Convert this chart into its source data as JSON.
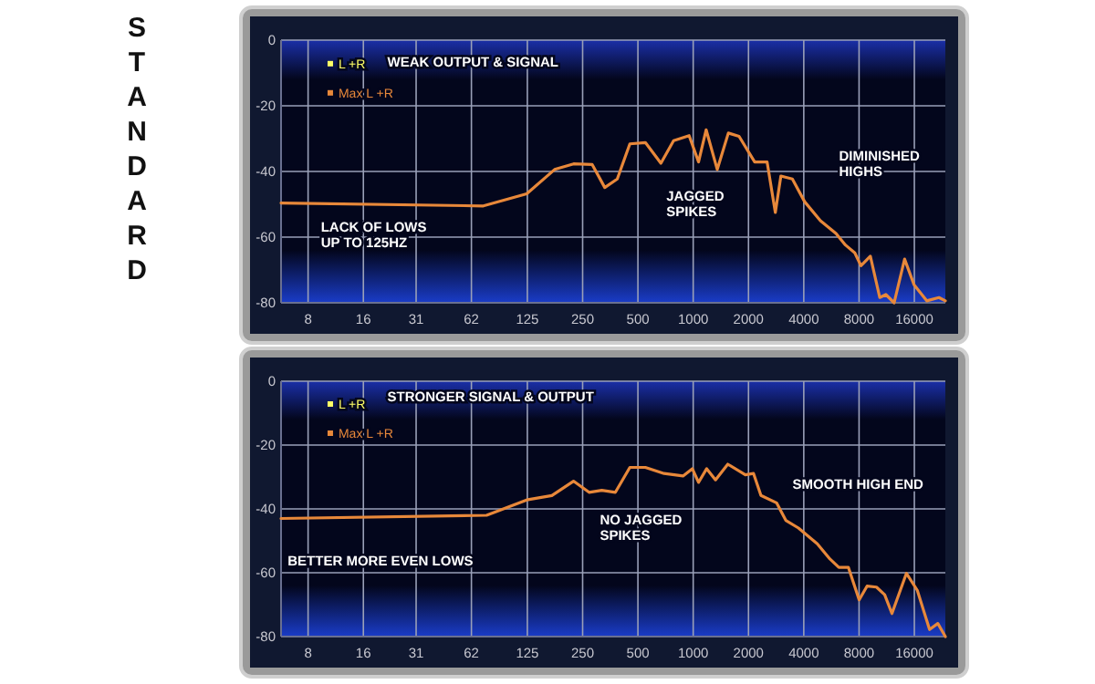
{
  "chart_data": [
    {
      "type": "line",
      "title": "STANDARD",
      "log": "x",
      "grid": true,
      "legend": "top left",
      "xlim": [
        5.7,
        23600
      ],
      "xticks": [
        8,
        16,
        31,
        62,
        125,
        250,
        500,
        1000,
        2000,
        4000,
        8000,
        16000
      ],
      "ylim": [
        -80,
        0
      ],
      "yticks": [
        0,
        -20,
        -40,
        -60,
        -80
      ],
      "annotations": [
        "WEAK OUTPUT & SIGNAL",
        "LACK OF LOWS\nUP TO 125HZ",
        "JAGGED\nSPIKES",
        "DIMINISHED\nHIGHS"
      ],
      "series": [
        {
          "name": "L +R",
          "color": "#ffff66"
        },
        {
          "name": "Max L +R",
          "color": "#e8883a",
          "x": [
            5.7,
            72,
            124,
            176,
            223,
            282,
            330,
            386,
            452,
            549,
            667,
            782,
            950,
            1069,
            1176,
            1352,
            1554,
            1777,
            2162,
            2525,
            2800,
            3002,
            3467,
            4041,
            4927,
            5992,
            6744,
            7582,
            8192,
            9216,
            10368,
            11195,
            12418,
            14160,
            15938,
            18688,
            21780,
            23600
          ],
          "values": [
            -49.6,
            -50.5,
            -46.8,
            -39.4,
            -37.7,
            -37.9,
            -44.9,
            -42.3,
            -31.6,
            -31.2,
            -37.5,
            -30.6,
            -29.1,
            -37.1,
            -27.3,
            -39.4,
            -28.3,
            -29.3,
            -37.1,
            -37.1,
            -52.5,
            -41.4,
            -42.3,
            -49.2,
            -55,
            -58.9,
            -62.4,
            -64.8,
            -68.7,
            -65.8,
            -78.4,
            -77.5,
            -80,
            -66.7,
            -74.5,
            -79.4,
            -78.4,
            -79.4
          ]
        }
      ]
    },
    {
      "type": "line",
      "log": "x",
      "grid": true,
      "legend": "top left",
      "xlim": [
        5.7,
        23600
      ],
      "xticks": [
        8,
        16,
        31,
        62,
        125,
        250,
        500,
        1000,
        2000,
        4000,
        8000,
        16000
      ],
      "ylim": [
        -80,
        0
      ],
      "yticks": [
        0,
        -20,
        -40,
        -60,
        -80
      ],
      "annotations": [
        "STRONGER SIGNAL & OUTPUT",
        "BETTER MORE EVEN LOWS",
        "NO JAGGED\nSPIKES",
        "SMOOTH HIGH END"
      ],
      "series": [
        {
          "name": "L +R",
          "color": "#ffff66"
        },
        {
          "name": "Max L +R",
          "color": "#e8883a",
          "x": [
            5.7,
            75,
            124,
            170,
            223,
            271,
            318,
            377,
            452,
            549,
            694,
            880,
            989,
            1069,
            1184,
            1323,
            1543,
            1923,
            2131,
            2338,
            2843,
            3193,
            3743,
            4737,
            5552,
            6210,
            6994,
            8010,
            8841,
            9952,
            11030,
            12080,
            14480,
            16600,
            19360,
            21480,
            23600
          ],
          "values": [
            -43,
            -42,
            -37.2,
            -35.8,
            -31.3,
            -34.8,
            -34.2,
            -34.8,
            -27,
            -27,
            -28.9,
            -29.7,
            -27.4,
            -31.7,
            -27.4,
            -30.9,
            -26,
            -29.3,
            -28.9,
            -35.8,
            -38.1,
            -43.6,
            -46,
            -50.9,
            -55.7,
            -58.3,
            -58.3,
            -68.5,
            -64.2,
            -64.5,
            -66.9,
            -72.8,
            -60.2,
            -65.5,
            -77.8,
            -75.9,
            -80
          ]
        }
      ]
    }
  ]
}
